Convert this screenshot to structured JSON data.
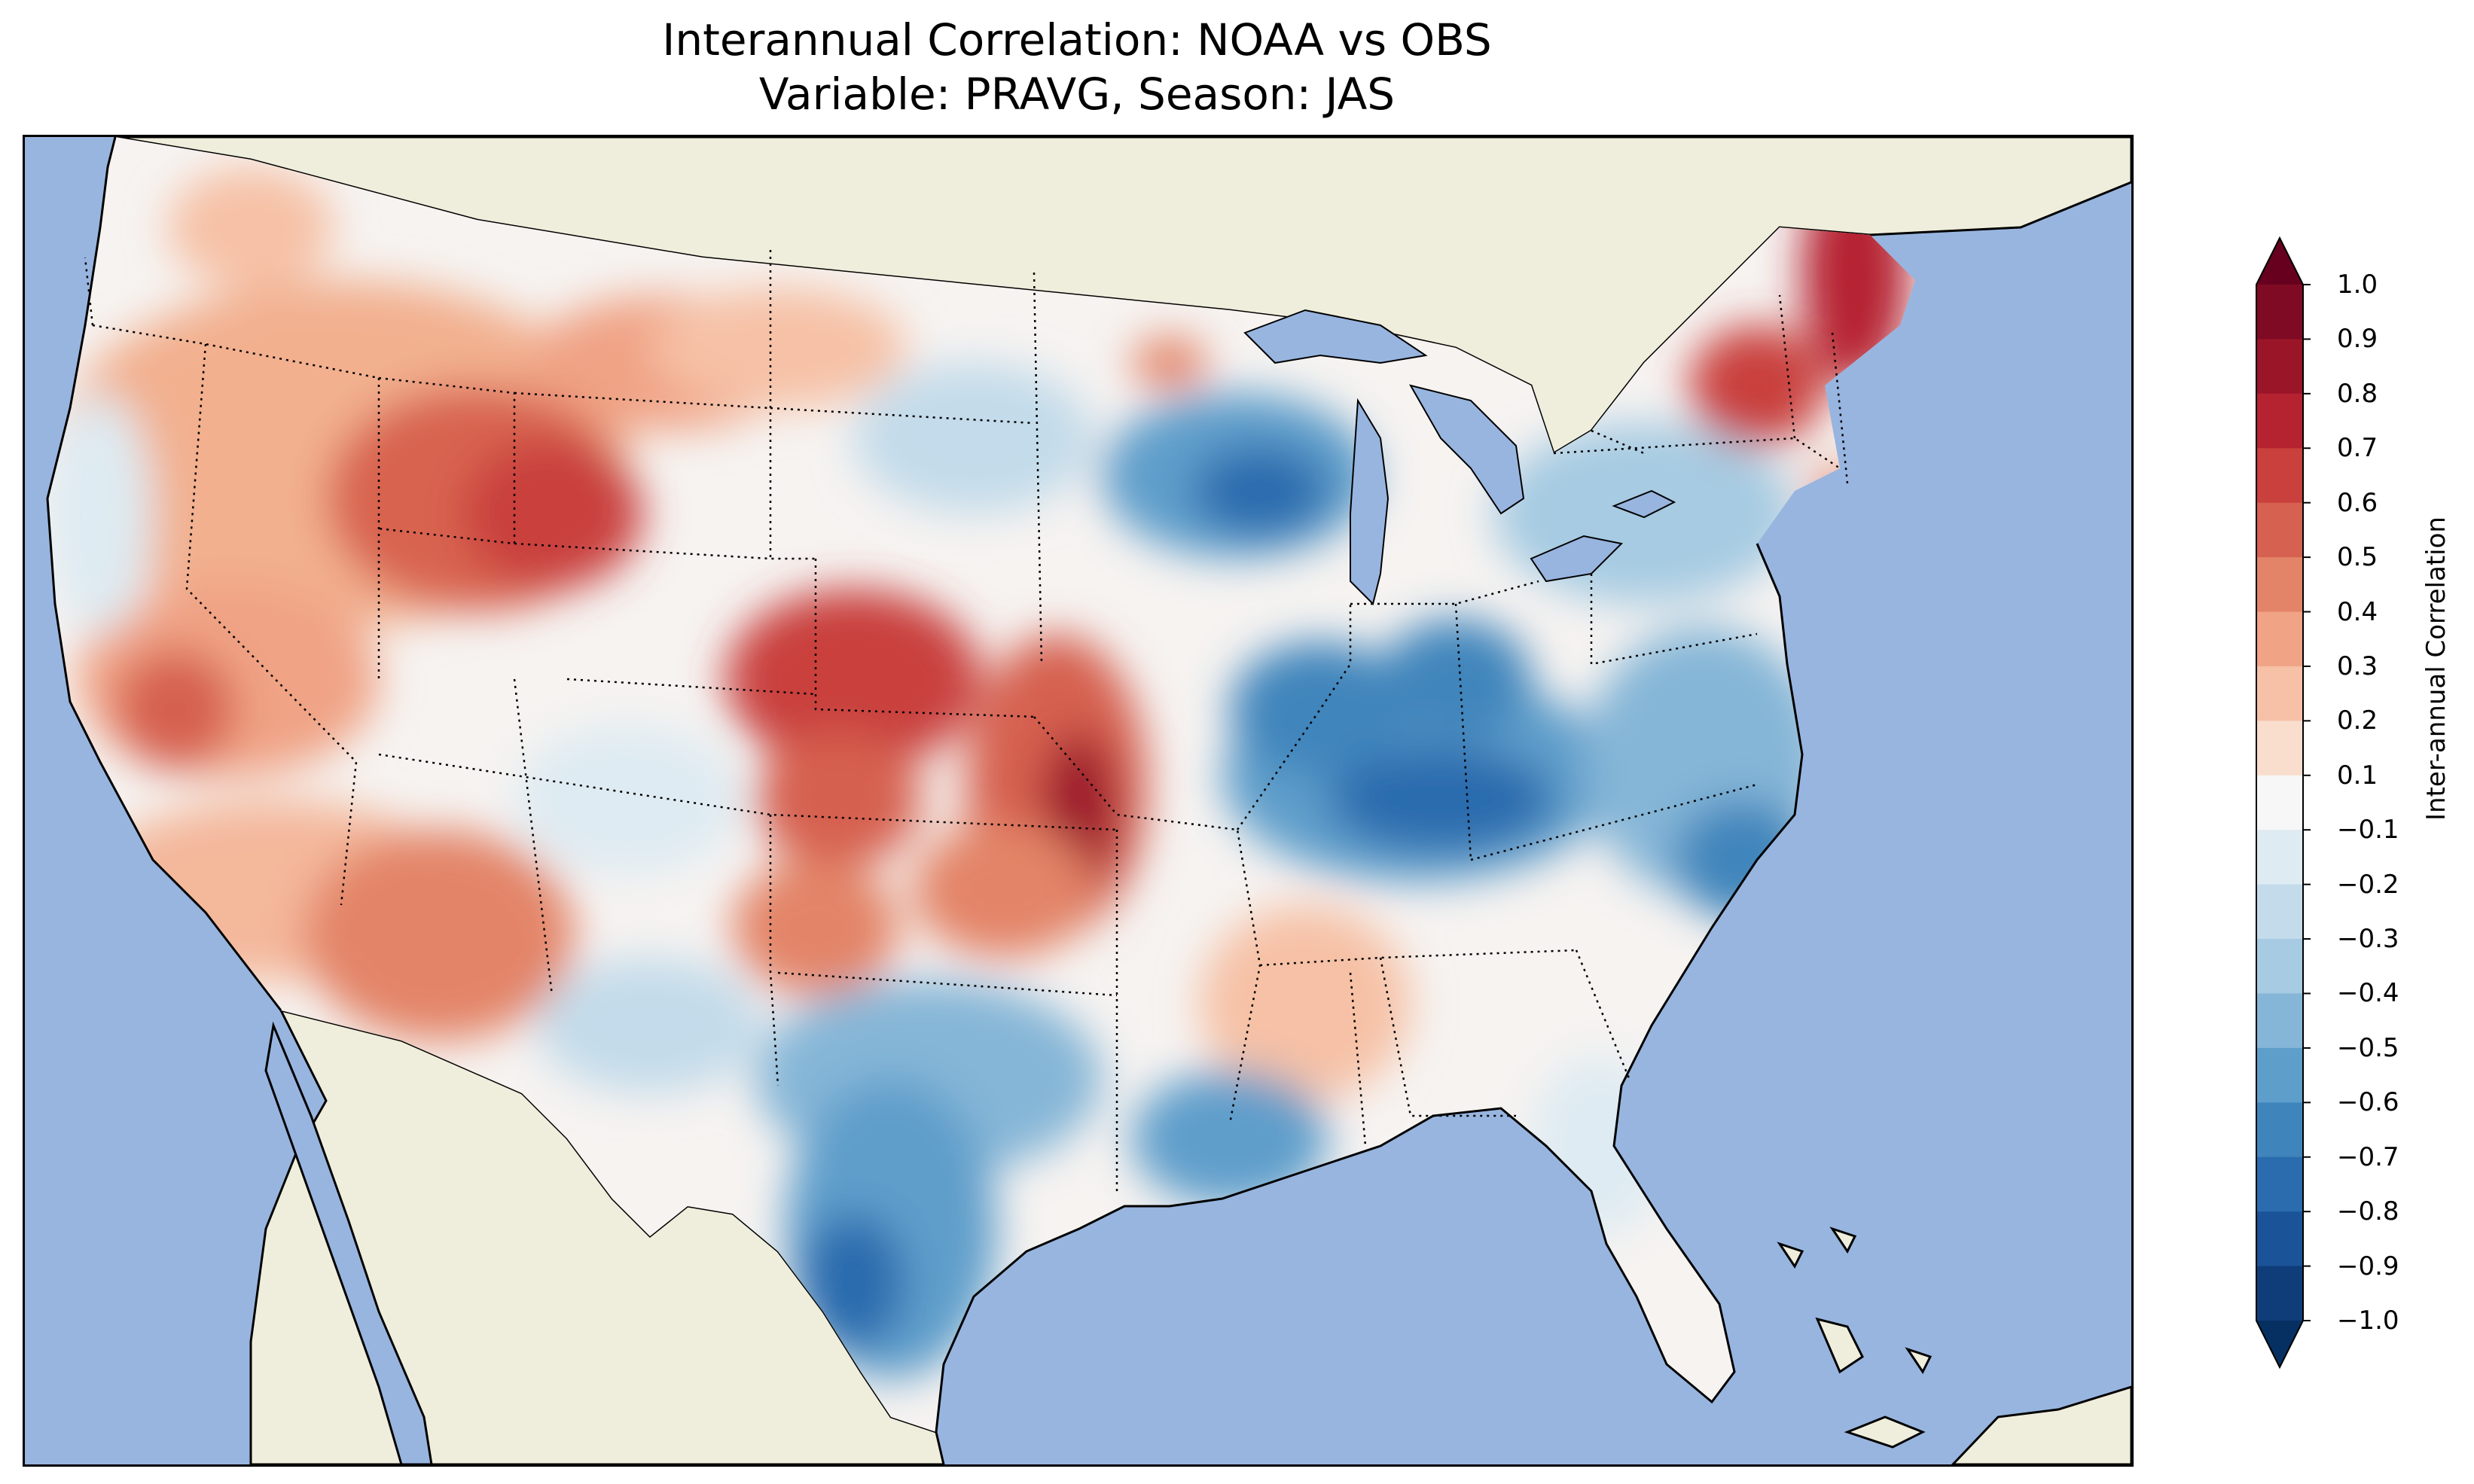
{
  "figure": {
    "title_line1": "Interannual Correlation: NOAA vs OBS",
    "title_line2": "Variable: PRAVG, Season: JAS"
  },
  "colorbar": {
    "label": "Inter-annual Correlation",
    "ticks": [
      "1.0",
      "0.9",
      "0.8",
      "0.7",
      "0.6",
      "0.5",
      "0.4",
      "0.3",
      "0.2",
      "0.1",
      "−0.1",
      "−0.2",
      "−0.3",
      "−0.4",
      "−0.5",
      "−0.6",
      "−0.7",
      "−0.8",
      "−0.9",
      "−1.0"
    ],
    "colors": [
      "#67001f",
      "#7f0a23",
      "#9b1529",
      "#b62330",
      "#c9403c",
      "#d66150",
      "#e38468",
      "#f0a385",
      "#f6c1a6",
      "#f9ddcd",
      "#f7f7f7",
      "#deebf2",
      "#c3dbea",
      "#a6cbe2",
      "#85b6d7",
      "#5e9ecb",
      "#3f85bc",
      "#2a6cae",
      "#1a5397",
      "#0f3d7a",
      "#053061"
    ],
    "range": [
      -1.0,
      1.0
    ],
    "extend": "both"
  },
  "map": {
    "projection": "Lambert conformal, contiguous United States",
    "ocean_color": "#98b5e0",
    "land_color": "#efeedc",
    "state_borders": "dotted",
    "coastlines": "solid"
  }
}
